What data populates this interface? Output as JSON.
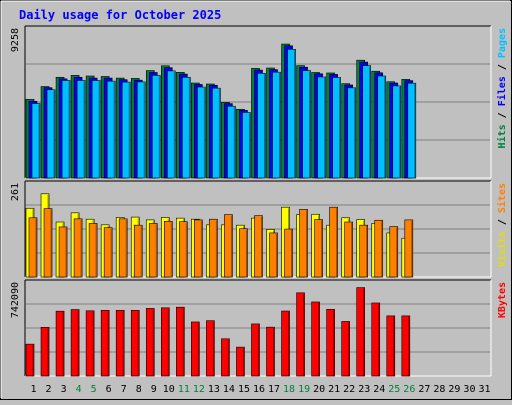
{
  "chart_data": {
    "type": "bar",
    "title": "Daily usage for October 2025",
    "days": [
      "1",
      "2",
      "3",
      "4",
      "5",
      "6",
      "7",
      "8",
      "9",
      "10",
      "11",
      "12",
      "13",
      "14",
      "15",
      "16",
      "17",
      "18",
      "19",
      "20",
      "21",
      "22",
      "23",
      "24",
      "25",
      "26",
      "27",
      "28",
      "29",
      "30",
      "31"
    ],
    "weekend_days": [
      "4",
      "5",
      "11",
      "12",
      "18",
      "19",
      "25",
      "26"
    ],
    "panels": [
      {
        "id": "hits",
        "max_label": "9258",
        "ylim": [
          0,
          9258
        ],
        "right_labels": [
          {
            "text": "Hits",
            "color": "#008040"
          },
          {
            "text": " / ",
            "color": "#000000"
          },
          {
            "text": "Files",
            "color": "#0000FF"
          },
          {
            "text": " / ",
            "color": "#000000"
          },
          {
            "text": "Pages",
            "color": "#00C0FF"
          }
        ],
        "series": [
          {
            "name": "Hits",
            "color": "#008040",
            "values": [
              4920,
              5720,
              6300,
              6420,
              6380,
              6350,
              6250,
              6230,
              6720,
              7020,
              6610,
              5940,
              5880,
              4730,
              4300,
              6860,
              6880,
              8380,
              7030,
              6600,
              6570,
              5900,
              7370,
              6680,
              6020,
              6170,
              0,
              0,
              0,
              0,
              0
            ]
          },
          {
            "name": "Files",
            "color": "#0000FF",
            "values": [
              4800,
              5650,
              6200,
              6300,
              6250,
              6250,
              6150,
              6120,
              6600,
              6900,
              6500,
              5850,
              5800,
              4650,
              4230,
              6750,
              6780,
              8270,
              6930,
              6520,
              6480,
              5820,
              7250,
              6580,
              5940,
              6090,
              0,
              0,
              0,
              0,
              0
            ]
          },
          {
            "name": "Pages",
            "color": "#00BFFF",
            "values": [
              4660,
              5520,
              6100,
              6100,
              6100,
              6060,
              6000,
              6010,
              6420,
              6700,
              6300,
              5690,
              5620,
              4490,
              4100,
              6550,
              6620,
              8050,
              6720,
              6320,
              6290,
              5640,
              7030,
              6380,
              5760,
              5930,
              0,
              0,
              0,
              0,
              0
            ]
          }
        ]
      },
      {
        "id": "visits",
        "max_label": "261",
        "ylim": [
          0,
          261
        ],
        "right_labels": [
          {
            "text": "Visits",
            "color": "#E0E000"
          },
          {
            "text": " / ",
            "color": "#000000"
          },
          {
            "text": "Sites",
            "color": "#FF8000"
          }
        ],
        "series": [
          {
            "name": "Visits",
            "color": "#FFFF00",
            "values": [
              195,
              236,
              156,
              182,
              164,
              148,
              169,
              170,
              162,
              169,
              167,
              164,
              148,
              148,
              147,
              167,
              135,
              198,
              177,
              178,
              147,
              168,
              163,
              152,
              125,
              110,
              0,
              0,
              0,
              0,
              0
            ]
          },
          {
            "name": "Sites",
            "color": "#FF8000",
            "values": [
              168,
              194,
              142,
              165,
              152,
              140,
              165,
              147,
              152,
              158,
              157,
              162,
              164,
              177,
              137,
              174,
              125,
              136,
              192,
              163,
              198,
              156,
              147,
              161,
              143,
              162,
              0,
              0,
              0,
              0,
              0
            ]
          }
        ]
      },
      {
        "id": "kbytes",
        "max_label": "742090",
        "ylim": [
          0,
          742090
        ],
        "right_labels": [
          {
            "text": "KBytes",
            "color": "#FF0000"
          }
        ],
        "series": [
          {
            "name": "KBytes",
            "color": "#FF0000",
            "values": [
              257000,
              393000,
              523000,
              536000,
              526000,
              530000,
              530000,
              530000,
              545000,
              550000,
              555000,
              436000,
              446000,
              300000,
              233000,
              420000,
              394000,
              524000,
              671000,
              597000,
              538000,
              440000,
              713000,
              589000,
              485000,
              485000,
              0,
              0,
              0,
              0,
              0
            ]
          }
        ]
      }
    ]
  }
}
